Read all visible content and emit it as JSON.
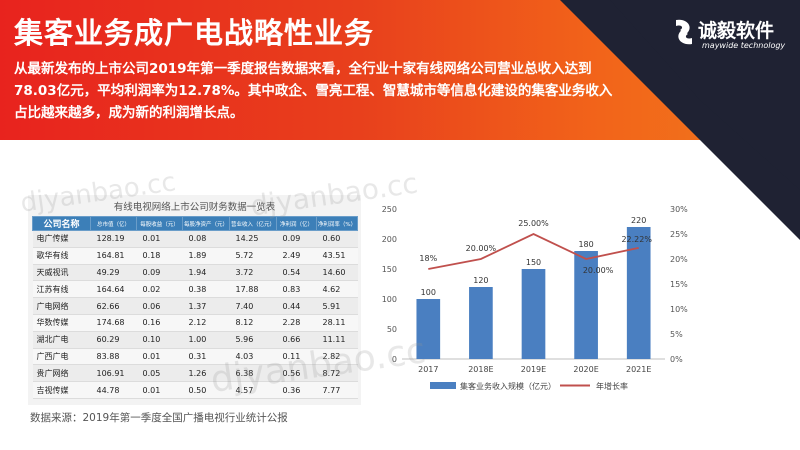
{
  "title": "集客业务成广电战略性业务",
  "summary": "从最新发布的上市公司2019年第一季度报告数据来看，全行业十家有线网络公司营业总收入达到78.03亿元，平均利润率为12.78%。其中政企、雪亮工程、智慧城市等信息化建设的集客业务收入占比越来越多，成为新的利润增长点。",
  "logo": {
    "name": "诚毅软件",
    "subtitle": "maywide technology",
    "icon": "swirl-logo-icon"
  },
  "table": {
    "title": "有线电视网络上市公司财务数据一览表",
    "headers": [
      "公司名称",
      "总市值（亿）",
      "每股收益（元）",
      "每股净资产（元）",
      "营业收入（亿元）",
      "净利润（亿）",
      "净利润率（%）"
    ],
    "rows": [
      [
        "电广传媒",
        "128.19",
        "0.01",
        "0.08",
        "14.25",
        "0.09",
        "0.60"
      ],
      [
        "歌华有线",
        "164.81",
        "0.18",
        "1.89",
        "5.72",
        "2.49",
        "43.51"
      ],
      [
        "天威视讯",
        "49.29",
        "0.09",
        "1.94",
        "3.72",
        "0.54",
        "14.60"
      ],
      [
        "江苏有线",
        "164.64",
        "0.02",
        "0.38",
        "17.88",
        "0.83",
        "4.62"
      ],
      [
        "广电网络",
        "62.66",
        "0.06",
        "1.37",
        "7.40",
        "0.44",
        "5.91"
      ],
      [
        "华数传媒",
        "174.68",
        "0.16",
        "2.12",
        "8.12",
        "2.28",
        "28.11"
      ],
      [
        "湖北广电",
        "60.29",
        "0.10",
        "1.00",
        "5.96",
        "0.66",
        "11.11"
      ],
      [
        "广西广电",
        "83.88",
        "0.01",
        "0.31",
        "4.03",
        "0.11",
        "2.82"
      ],
      [
        "贵广网络",
        "106.91",
        "0.05",
        "1.26",
        "6.38",
        "0.56",
        "8.72"
      ],
      [
        "吉视传媒",
        "44.78",
        "0.01",
        "0.50",
        "4.57",
        "0.36",
        "7.77"
      ]
    ]
  },
  "chart_data": {
    "type": "bar",
    "categories": [
      "2017",
      "2018E",
      "2019E",
      "2020E",
      "2021E"
    ],
    "series": [
      {
        "name": "集客业务收入规模（亿元）",
        "type": "bar",
        "axis": "left",
        "values": [
          100,
          120,
          150,
          180,
          220
        ],
        "labels": [
          "100",
          "120",
          "150",
          "180",
          "220"
        ]
      },
      {
        "name": "年增长率",
        "type": "line",
        "axis": "right",
        "values": [
          18,
          20,
          25,
          20,
          22.22
        ],
        "labels": [
          "18%",
          "20.00%",
          "25.00%",
          "20.00%",
          "22.22%"
        ]
      }
    ],
    "y_left": {
      "ylim": [
        0,
        250
      ],
      "ticks": [
        "0",
        "50",
        "100",
        "150",
        "200",
        "250"
      ]
    },
    "y_right": {
      "ylim": [
        0,
        30
      ],
      "ticks": [
        "0%",
        "5%",
        "10%",
        "15%",
        "20%",
        "25%",
        "30%"
      ]
    },
    "legend_position": "bottom",
    "grid": false,
    "colors": {
      "bar": "#4a7fc1",
      "line": "#c0504d"
    }
  },
  "source": "数据来源：2019年第一季度全国广播电视行业统计公报",
  "watermarks": [
    "djyanbao.cc",
    "djyanbao.cc",
    "djyanbao.cc"
  ],
  "colors": {
    "accent_red": "#e8231e",
    "accent_orange": "#f07a1c",
    "dark_navy": "#1f2233",
    "header_blue": "#3c7fb8"
  }
}
